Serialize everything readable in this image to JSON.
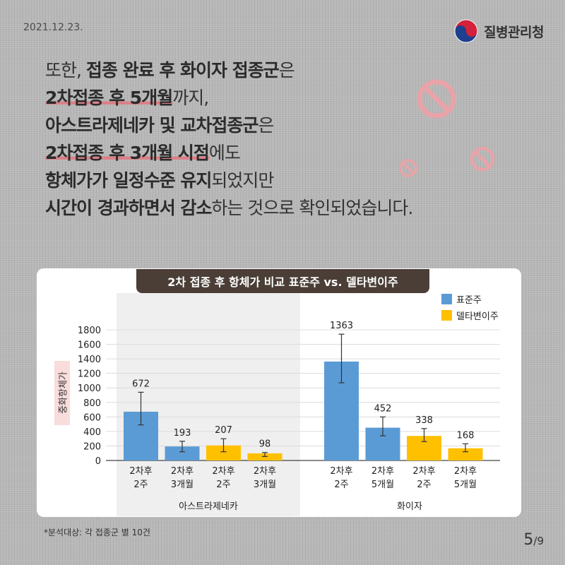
{
  "header": {
    "date": "2021.12.23.",
    "agency": "질병관리청"
  },
  "headline": {
    "l1_a": "또한, ",
    "l1_b": "접종 완료 후 화이자 접종군",
    "l1_c": "은",
    "l2_a": "2차접종 후 5개월",
    "l2_b": "까지,",
    "l3_a": "아스트라제네카 및 교차접종군",
    "l3_b": "은",
    "l4_a": "2차접종 후 3개월 시점",
    "l4_b": "에도",
    "l5_a": "항체가가 일정수준 유지",
    "l5_b": "되었지만",
    "l6_a": "시간이 경과하면서 감소",
    "l6_b": "하는 것으로 확인되었습니다."
  },
  "footer": {
    "footnote": "*분석대상: 각 접종군 별 10건",
    "page_current": "5",
    "page_total": "/9"
  },
  "colors": {
    "standard": "#5b9bd5",
    "delta": "#ffc000",
    "title_bg": "#4a3e37",
    "underline": "#e9697399"
  },
  "chart_data": {
    "type": "bar",
    "title": "2차 접종 후 항체가 비교 표준주 vs. 델타변이주",
    "ylabel": "중화항체가",
    "ylim": [
      0,
      1800
    ],
    "yticks": [
      0,
      200,
      400,
      600,
      800,
      1000,
      1200,
      1400,
      1600,
      1800
    ],
    "legend": {
      "placement": "top-right",
      "entries": [
        "표준주",
        "델타변이주"
      ]
    },
    "groups": [
      {
        "name": "아스트라제네카",
        "bars": [
          {
            "label_l1": "2차후",
            "label_l2": "2주",
            "strain": "표준주",
            "value": 672,
            "err_low": 490,
            "err_high": 940
          },
          {
            "label_l1": "2차후",
            "label_l2": "3개월",
            "strain": "표준주",
            "value": 193,
            "err_low": 120,
            "err_high": 265
          },
          {
            "label_l1": "2차후",
            "label_l2": "2주",
            "strain": "델타변이주",
            "value": 207,
            "err_low": 120,
            "err_high": 300
          },
          {
            "label_l1": "2차후",
            "label_l2": "3개월",
            "strain": "델타변이주",
            "value": 98,
            "err_low": 55,
            "err_high": 110
          }
        ]
      },
      {
        "name": "화이자",
        "bars": [
          {
            "label_l1": "2차후",
            "label_l2": "2주",
            "strain": "표준주",
            "value": 1363,
            "err_low": 1070,
            "err_high": 1740
          },
          {
            "label_l1": "2차후",
            "label_l2": "5개월",
            "strain": "표준주",
            "value": 452,
            "err_low": 340,
            "err_high": 600
          },
          {
            "label_l1": "2차후",
            "label_l2": "2주",
            "strain": "델타변이주",
            "value": 338,
            "err_low": 260,
            "err_high": 440
          },
          {
            "label_l1": "2차후",
            "label_l2": "5개월",
            "strain": "델타변이주",
            "value": 168,
            "err_low": 120,
            "err_high": 230
          }
        ]
      }
    ]
  }
}
